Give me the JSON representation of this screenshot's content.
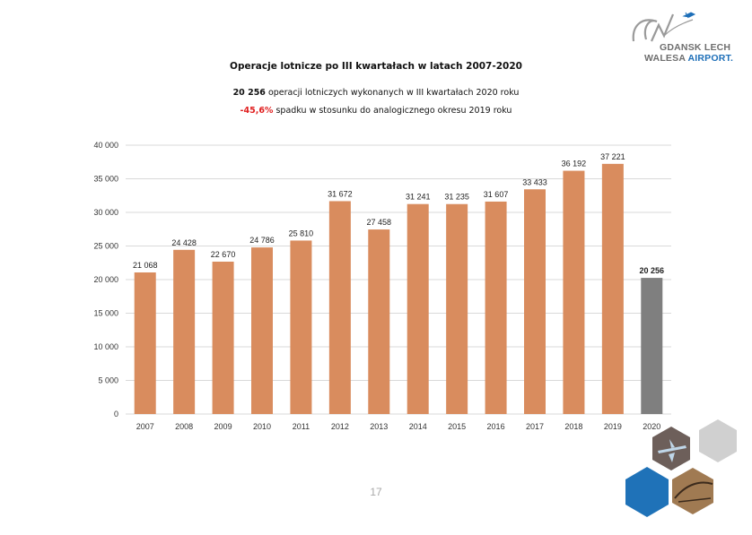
{
  "logo": {
    "line1_gray": "GDANSK",
    "line1_blue": "LECH",
    "line2_gray": "WALESA",
    "line2_blue": "AIRPORT."
  },
  "header": {
    "title": "Operacje lotnicze po III kwartałach w latach 2007-2020",
    "subtitle1_value": "20 256",
    "subtitle1_text": "operacji lotniczych wykonanych w III kwartałach 2020 roku",
    "subtitle2_value": "-45,6%",
    "subtitle2_text": "spadku w stosunku do analogicznego okresu 2019 roku"
  },
  "colors": {
    "bar": "#d98c5e",
    "bar_highlight": "#7f7f7f",
    "grid": "#d9d9d9",
    "hex_blue": "#1f72b8",
    "hex_gray": "#d0d0d0"
  },
  "chart_data": {
    "type": "bar",
    "title": "Operacje lotnicze po III kwartałach w latach 2007-2020",
    "categories": [
      "2007",
      "2008",
      "2009",
      "2010",
      "2011",
      "2012",
      "2013",
      "2014",
      "2015",
      "2016",
      "2017",
      "2018",
      "2019",
      "2020"
    ],
    "values": [
      21068,
      24428,
      22670,
      24786,
      25810,
      31672,
      27458,
      31241,
      31235,
      31607,
      33433,
      36192,
      37221,
      20256
    ],
    "data_labels": [
      "21 068",
      "24 428",
      "22 670",
      "24 786",
      "25 810",
      "31 672",
      "27 458",
      "31 241",
      "31 235",
      "31 607",
      "33 433",
      "36 192",
      "37 221",
      "20 256"
    ],
    "highlight_category": "2020",
    "ylim": [
      0,
      40000
    ],
    "yticks": [
      0,
      5000,
      10000,
      15000,
      20000,
      25000,
      30000,
      35000,
      40000
    ],
    "ytick_labels": [
      "0",
      "5 000",
      "10 000",
      "15 000",
      "20 000",
      "25 000",
      "30 000",
      "35 000",
      "40 000"
    ],
    "grid": true,
    "legend": "none"
  },
  "footer": {
    "page_number": "17"
  },
  "decor": {
    "hexagon_images": [
      "aircraft-icon",
      "terminal-icon"
    ]
  }
}
